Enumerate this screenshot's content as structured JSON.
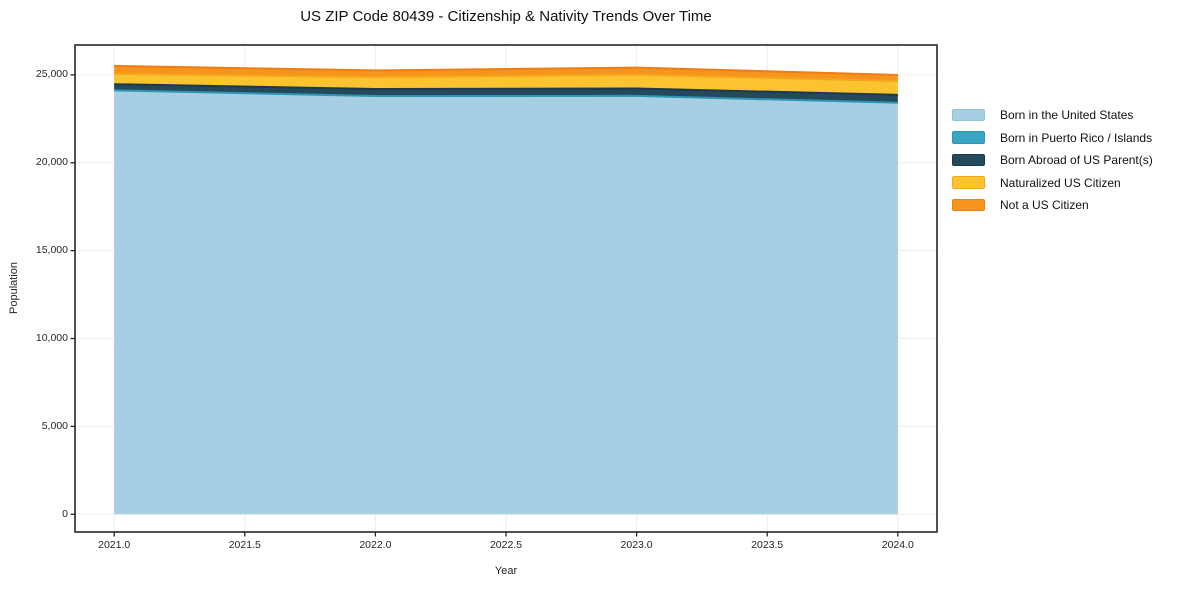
{
  "chart_data": {
    "type": "area",
    "stacked": true,
    "title": "US ZIP Code 80439 - Citizenship & Nativity Trends Over Time",
    "xlabel": "Year",
    "ylabel": "Population",
    "x": [
      2021,
      2022,
      2023,
      2024
    ],
    "series": [
      {
        "name": "Born in the United States",
        "color": "#a6cfe4",
        "edge": "#93c2da",
        "values": [
          24100,
          23780,
          23790,
          23400
        ]
      },
      {
        "name": "Born in Puerto Rico / Islands",
        "color": "#39a6c3",
        "edge": "#2d96b5",
        "values": [
          20,
          15,
          15,
          15
        ]
      },
      {
        "name": "Born Abroad of US Parent(s)",
        "color": "#25495c",
        "edge": "#1c3a4a",
        "values": [
          350,
          400,
          420,
          450
        ]
      },
      {
        "name": "Naturalized US Citizen",
        "color": "#fcc330",
        "edge": "#f3a81b",
        "values": [
          590,
          680,
          790,
          780
        ]
      },
      {
        "name": "Not a US Citizen",
        "color": "#f7941e",
        "edge": "#ee7d13",
        "values": [
          450,
          380,
          400,
          350
        ]
      }
    ],
    "xlim": [
      2020.85,
      2024.15
    ],
    "ylim": [
      -1007,
      26700
    ],
    "xticks": {
      "values": [
        2021.0,
        2021.5,
        2022.0,
        2022.5,
        2023.0,
        2023.5,
        2024.0
      ],
      "labels": [
        "2021.0",
        "2021.5",
        "2022.0",
        "2022.5",
        "2023.0",
        "2023.5",
        "2024.0"
      ]
    },
    "yticks": {
      "values": [
        0,
        5000,
        10000,
        15000,
        20000,
        25000
      ],
      "labels": [
        "0",
        "5,000",
        "10,000",
        "15,000",
        "20,000",
        "25,000"
      ]
    },
    "grid": true,
    "grid_color": "#ececec",
    "spine_color": "#262626",
    "legend_position": "outside-right"
  }
}
